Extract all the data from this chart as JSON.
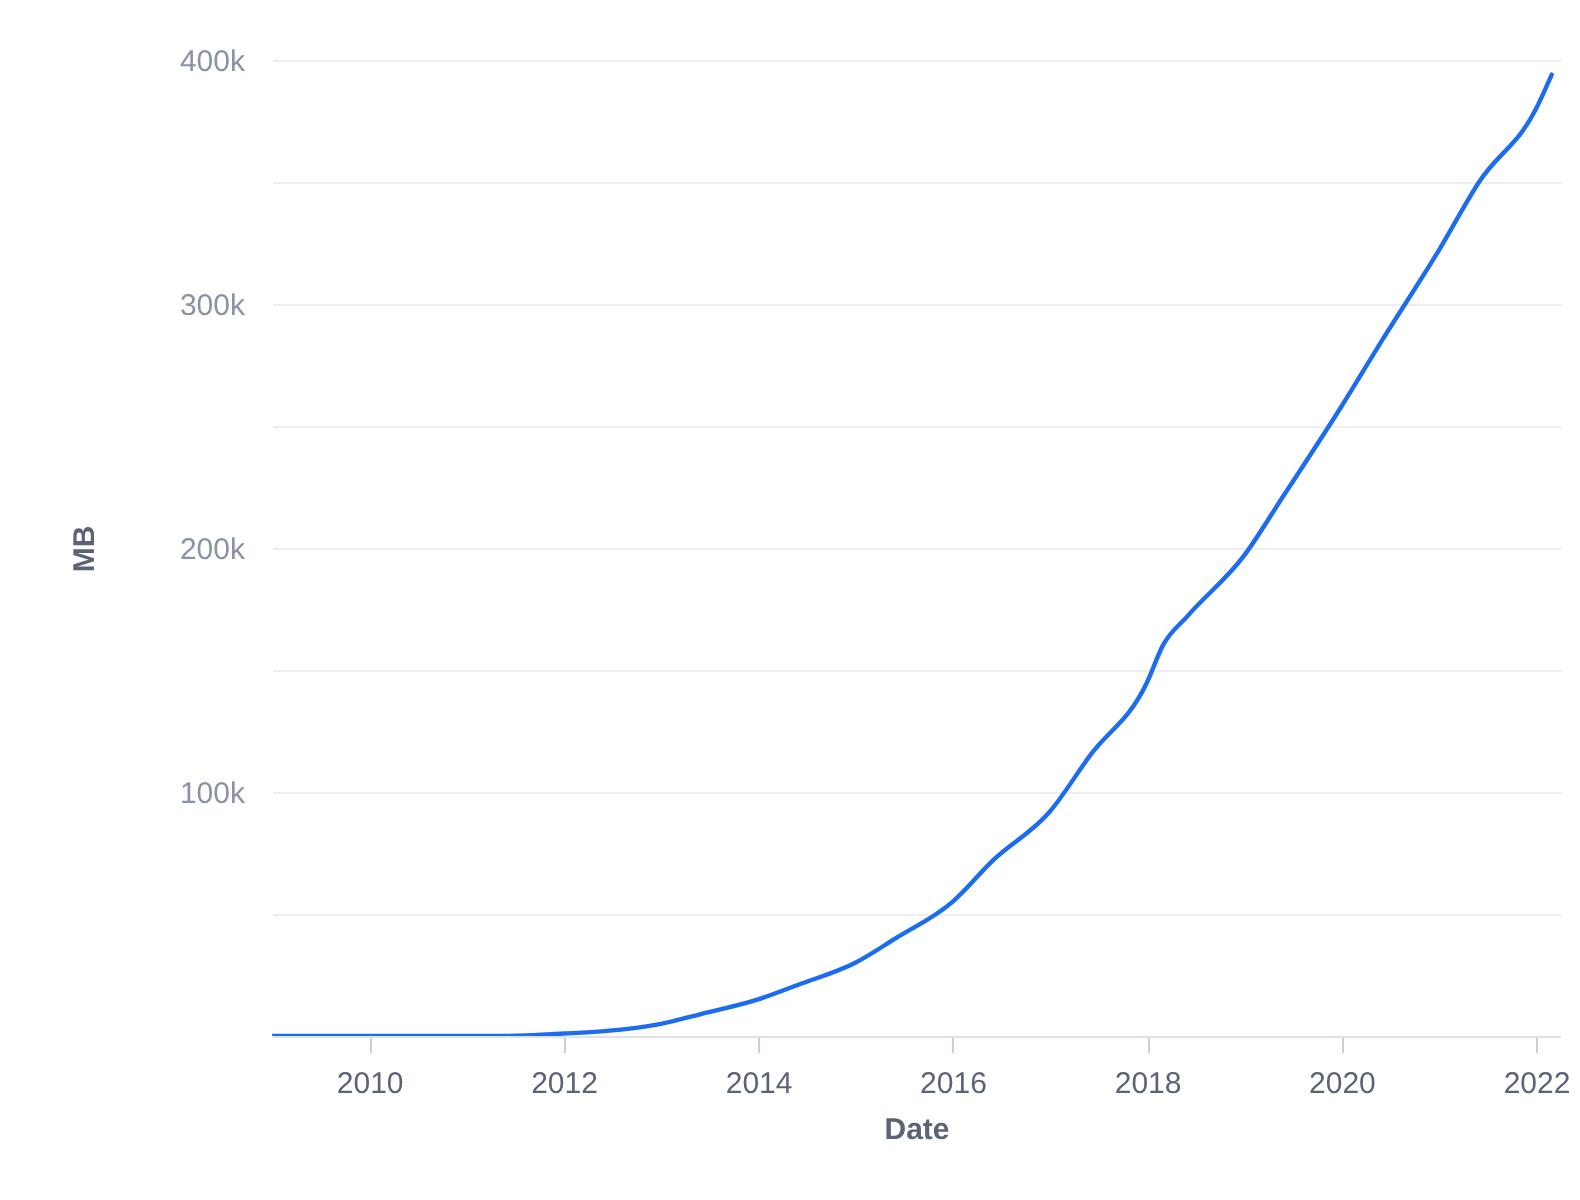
{
  "chart_data": {
    "type": "line",
    "xlabel": "Date",
    "ylabel": "MB",
    "x": [
      "2009-01-03",
      "2010-01",
      "2011-01",
      "2011-06",
      "2012-01",
      "2012-06",
      "2013-01",
      "2013-06",
      "2014-01",
      "2014-06",
      "2015-01",
      "2015-06",
      "2016-01",
      "2016-06",
      "2017-01",
      "2017-06",
      "2018-01",
      "2018-03",
      "2018-06",
      "2019-01",
      "2019-06",
      "2020-01",
      "2020-06",
      "2021-01",
      "2021-06",
      "2022-01",
      "2022-03"
    ],
    "series": [
      {
        "color": "#1c6cf0",
        "values": [
          0,
          0,
          0,
          0,
          1000,
          2000,
          5000,
          9000,
          15000,
          21000,
          30000,
          40000,
          55000,
          72000,
          92000,
          115000,
          145000,
          160000,
          172000,
          197000,
          222000,
          258000,
          285000,
          322000,
          350000,
          380000,
          394000
        ]
      }
    ],
    "xlim": [
      "2009-01-01",
      "2022-04-01"
    ],
    "ylim": [
      0,
      400000
    ],
    "xticks": [
      "2010",
      "2012",
      "2014",
      "2016",
      "2018",
      "2020",
      "2022"
    ],
    "yticks": [
      {
        "value": 50000,
        "label": null
      },
      {
        "value": 100000,
        "label": "100k"
      },
      {
        "value": 150000,
        "label": null
      },
      {
        "value": 200000,
        "label": "200k"
      },
      {
        "value": 250000,
        "label": null
      },
      {
        "value": 300000,
        "label": "300k"
      },
      {
        "value": 350000,
        "label": null
      },
      {
        "value": 400000,
        "label": "400k"
      }
    ],
    "grid": "y",
    "marker": "none",
    "line_style": "solid"
  }
}
